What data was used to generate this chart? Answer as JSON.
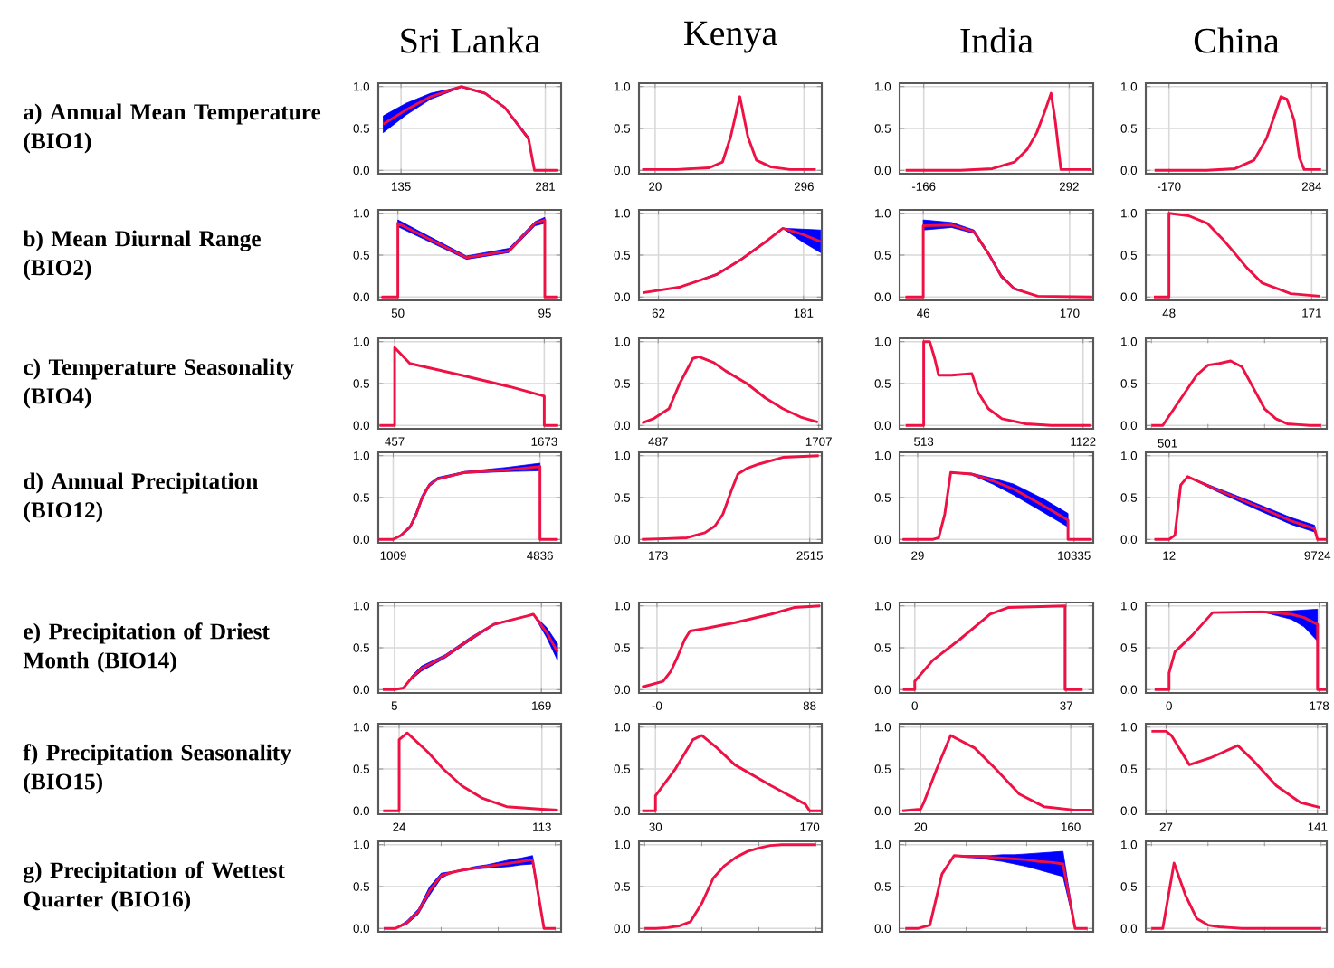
{
  "chart_data": [
    {
      "type": "line",
      "title": "Sri Lanka",
      "ylabel": "a) Annual Mean Temperature (BIO1)",
      "x": [
        117,
        140,
        165,
        196,
        220,
        240,
        264,
        270,
        294
      ],
      "xlim": [
        112,
        297
      ],
      "xticks": [
        135,
        281
      ],
      "ylim": [
        -0.04,
        1.04
      ],
      "yticks": [
        {
          "value": 0,
          "label": "0.0"
        },
        {
          "value": 0.5,
          "label": "0.5"
        },
        {
          "value": 1,
          "label": "1.0"
        }
      ],
      "grid": true,
      "series": [
        {
          "color": "#ee1144",
          "values": [
            0.55,
            0.72,
            0.88,
            1.0,
            0.92,
            0.75,
            0.38,
            0,
            0
          ],
          "lower": [
            0.45,
            0.66,
            0.85,
            0.99,
            0.91,
            0.74,
            0.36,
            0,
            0
          ],
          "upper": [
            0.65,
            0.8,
            0.92,
            1.0,
            0.93,
            0.76,
            0.4,
            0,
            0
          ]
        }
      ]
    },
    {
      "type": "line",
      "title": "Kenya",
      "x": [
        -4,
        60,
        120,
        145,
        160,
        177,
        192,
        208,
        235,
        270,
        318
      ],
      "xlim": [
        -10,
        329
      ],
      "xticks": [
        20,
        296
      ],
      "ylim": [
        -0.04,
        1.04
      ],
      "yticks": [
        {
          "value": 0,
          "label": "0.0"
        },
        {
          "value": 0.5,
          "label": "0.5"
        },
        {
          "value": 1,
          "label": "1.0"
        }
      ],
      "grid": true,
      "series": [
        {
          "color": "#ee1144",
          "values": [
            0.01,
            0.01,
            0.03,
            0.1,
            0.4,
            0.88,
            0.4,
            0.12,
            0.04,
            0.01,
            0.01
          ]
        }
      ]
    },
    {
      "type": "line",
      "title": "India",
      "x": [
        -223,
        -50,
        50,
        120,
        160,
        190,
        215,
        235,
        248,
        266,
        360
      ],
      "xlim": [
        -242,
        368
      ],
      "xticks": [
        -166,
        292
      ],
      "ylim": [
        -0.04,
        1.04
      ],
      "yticks": [
        {
          "value": 0,
          "label": "0.0"
        },
        {
          "value": 0.5,
          "label": "0.5"
        },
        {
          "value": 1,
          "label": "1.0"
        }
      ],
      "grid": true,
      "series": [
        {
          "color": "#ee1144",
          "values": [
            0,
            0,
            0.02,
            0.1,
            0.25,
            0.45,
            0.7,
            0.92,
            0.6,
            0.01,
            0.01
          ]
        }
      ]
    },
    {
      "type": "line",
      "title": "China",
      "x": [
        -216,
        -50,
        40,
        100,
        140,
        170,
        186,
        205,
        228,
        245,
        260,
        314
      ],
      "xlim": [
        -244,
        332
      ],
      "xticks": [
        -170,
        284
      ],
      "ylim": [
        -0.04,
        1.04
      ],
      "yticks": [
        {
          "value": 0,
          "label": "0.0"
        },
        {
          "value": 0.5,
          "label": "0.5"
        },
        {
          "value": 1,
          "label": "1.0"
        }
      ],
      "grid": true,
      "series": [
        {
          "color": "#ee1144",
          "values": [
            0,
            0,
            0.02,
            0.12,
            0.38,
            0.7,
            0.88,
            0.85,
            0.6,
            0.15,
            0.01,
            0.01
          ]
        }
      ]
    },
    {
      "type": "line",
      "ylabel": "b) Mean Diurnal Range (BIO2)",
      "x": [
        45,
        50,
        50,
        71,
        84,
        92,
        95,
        95,
        99
      ],
      "xlim": [
        44,
        100
      ],
      "xticks": [
        50,
        95
      ],
      "ylim": [
        -0.04,
        1.04
      ],
      "yticks": [
        {
          "value": 0,
          "label": "0.0"
        },
        {
          "value": 0.5,
          "label": "0.5"
        },
        {
          "value": 1,
          "label": "1.0"
        }
      ],
      "grid": true,
      "series": [
        {
          "color": "#ee1144",
          "values": [
            0,
            0,
            0.88,
            0.47,
            0.55,
            0.88,
            0.92,
            0,
            0
          ],
          "lower": [
            0,
            0,
            0.84,
            0.45,
            0.53,
            0.85,
            0.88,
            0,
            0
          ],
          "upper": [
            0,
            0,
            0.92,
            0.49,
            0.58,
            0.9,
            0.95,
            0,
            0
          ]
        }
      ]
    },
    {
      "type": "line",
      "x": [
        49,
        80,
        110,
        130,
        150,
        164,
        180,
        195
      ],
      "xlim": [
        46,
        196
      ],
      "xticks": [
        62,
        181
      ],
      "ylim": [
        -0.04,
        1.04
      ],
      "yticks": [
        {
          "value": 0,
          "label": "0.0"
        },
        {
          "value": 0.5,
          "label": "0.5"
        },
        {
          "value": 1,
          "label": "1.0"
        }
      ],
      "grid": true,
      "series": [
        {
          "color": "#ee1144",
          "values": [
            0.05,
            0.12,
            0.27,
            0.45,
            0.66,
            0.82,
            0.75,
            0.66
          ],
          "lower": [
            0.05,
            0.12,
            0.26,
            0.44,
            0.65,
            0.82,
            0.66,
            0.53
          ],
          "upper": [
            0.05,
            0.12,
            0.28,
            0.46,
            0.67,
            0.82,
            0.81,
            0.8
          ]
        }
      ]
    },
    {
      "type": "line",
      "x": [
        31,
        46,
        46,
        70,
        89,
        102,
        112,
        123,
        143,
        189
      ],
      "xlim": [
        26,
        190
      ],
      "xticks": [
        46,
        170
      ],
      "ylim": [
        -0.04,
        1.04
      ],
      "yticks": [
        {
          "value": 0,
          "label": "0.0"
        },
        {
          "value": 0.5,
          "label": "0.5"
        },
        {
          "value": 1,
          "label": "1.0"
        }
      ],
      "grid": true,
      "series": [
        {
          "color": "#ee1144",
          "values": [
            0,
            0,
            0.85,
            0.86,
            0.78,
            0.5,
            0.25,
            0.1,
            0.01,
            0
          ],
          "lower": [
            0,
            0,
            0.8,
            0.83,
            0.76,
            0.48,
            0.23,
            0.09,
            0.01,
            0
          ],
          "upper": [
            0,
            0,
            0.92,
            0.89,
            0.8,
            0.52,
            0.27,
            0.11,
            0.01,
            0
          ]
        }
      ]
    },
    {
      "type": "line",
      "x": [
        35,
        48,
        48,
        65,
        81,
        95,
        103,
        115,
        128,
        153,
        178
      ],
      "xlim": [
        28,
        184
      ],
      "xticks": [
        48,
        171
      ],
      "ylim": [
        -0.04,
        1.04
      ],
      "yticks": [
        {
          "value": 0,
          "label": "0.0"
        },
        {
          "value": 0.5,
          "label": "0.5"
        },
        {
          "value": 1,
          "label": "1.0"
        }
      ],
      "grid": true,
      "series": [
        {
          "color": "#ee1144",
          "values": [
            0,
            0,
            1.0,
            0.97,
            0.88,
            0.68,
            0.55,
            0.35,
            0.17,
            0.04,
            0.01
          ]
        }
      ]
    },
    {
      "type": "line",
      "ylabel": "c) Temperature Seasonality (BIO4)",
      "x": [
        334,
        457,
        457,
        580,
        1000,
        1400,
        1673,
        1673,
        1786
      ],
      "xlim": [
        324,
        1810
      ],
      "xticks": [
        457,
        1673
      ],
      "ylim": [
        -0.04,
        1.04
      ],
      "yticks": [
        {
          "value": 0,
          "label": "0.0"
        },
        {
          "value": 0.5,
          "label": "0.5"
        },
        {
          "value": 1,
          "label": "1.0"
        }
      ],
      "grid": true,
      "series": [
        {
          "color": "#ee1144",
          "values": [
            0,
            0,
            0.93,
            0.74,
            0.6,
            0.46,
            0.35,
            0,
            0
          ]
        }
      ]
    },
    {
      "type": "line",
      "x": [
        364,
        450,
        569,
        650,
        751,
        796,
        910,
        1000,
        1161,
        1300,
        1434,
        1570,
        1700
      ],
      "xlim": [
        341,
        1730
      ],
      "xticks": [
        487,
        1707
      ],
      "ylim": [
        -0.04,
        1.04
      ],
      "yticks": [
        {
          "value": 0,
          "label": "0.0"
        },
        {
          "value": 0.5,
          "label": "0.5"
        },
        {
          "value": 1,
          "label": "1.0"
        }
      ],
      "grid": true,
      "series": [
        {
          "color": "#ee1144",
          "values": [
            0.03,
            0.08,
            0.2,
            0.5,
            0.8,
            0.82,
            0.75,
            0.65,
            0.5,
            0.33,
            0.2,
            0.1,
            0.04
          ]
        }
      ]
    },
    {
      "type": "line",
      "x": [
        444,
        513,
        513,
        536,
        555,
        570,
        620,
        697,
        720,
        760,
        812,
        904,
        1000,
        1150
      ],
      "xlim": [
        421,
        1161
      ],
      "xticks": [
        513,
        1122
      ],
      "ylim": [
        -0.04,
        1.04
      ],
      "yticks": [
        {
          "value": 0,
          "label": "0.0"
        },
        {
          "value": 0.5,
          "label": "0.5"
        },
        {
          "value": 1,
          "label": "1.0"
        }
      ],
      "grid": true,
      "series": [
        {
          "color": "#ee1144",
          "values": [
            0,
            0,
            1.0,
            1.0,
            0.8,
            0.6,
            0.6,
            0.62,
            0.4,
            0.2,
            0.08,
            0.02,
            0,
            0
          ]
        }
      ]
    },
    {
      "type": "line",
      "categories": [
        null,
        null,
        null,
        null,
        null,
        null,
        null,
        null,
        null,
        null,
        null,
        null,
        null,
        null,
        null,
        null
      ],
      "annotations": [
        "501"
      ],
      "ylim": [
        -0.04,
        1.04
      ],
      "yticks": [
        {
          "value": 0,
          "label": "0.0"
        },
        {
          "value": 0.5,
          "label": "0.5"
        },
        {
          "value": 1,
          "label": "1.0"
        }
      ],
      "grid": "y",
      "series": [
        {
          "color": "#ee1144",
          "values": [
            0,
            0,
            0.2,
            0.4,
            0.6,
            0.72,
            0.74,
            0.77,
            0.7,
            0.45,
            0.2,
            0.08,
            0.02,
            0.01,
            0,
            0
          ]
        }
      ]
    },
    {
      "type": "line",
      "ylabel": "d) Annual Precipitation (BIO12)",
      "x": [
        631,
        1009,
        1214,
        1450,
        1607,
        1765,
        1950,
        2159,
        2868,
        3970,
        4836,
        4836,
        5300
      ],
      "xlim": [
        620,
        5387
      ],
      "xticks": [
        1009,
        4836
      ],
      "ylim": [
        -0.04,
        1.04
      ],
      "yticks": [
        {
          "value": 0,
          "label": "0.0"
        },
        {
          "value": 0.5,
          "label": "0.5"
        },
        {
          "value": 1,
          "label": "1.0"
        }
      ],
      "grid": true,
      "series": [
        {
          "color": "#ee1144",
          "values": [
            0,
            0,
            0.05,
            0.15,
            0.3,
            0.5,
            0.65,
            0.72,
            0.8,
            0.83,
            0.87,
            0,
            0
          ],
          "lower": [
            0,
            0,
            0.04,
            0.13,
            0.27,
            0.47,
            0.63,
            0.71,
            0.79,
            0.81,
            0.82,
            0,
            0
          ],
          "upper": [
            0,
            0,
            0.06,
            0.17,
            0.33,
            0.53,
            0.67,
            0.74,
            0.81,
            0.86,
            0.91,
            0,
            0
          ]
        }
      ]
    },
    {
      "type": "line",
      "x": [
        -77,
        300,
        617,
        895,
        1050,
        1173,
        1312,
        1405,
        1550,
        1729,
        2099,
        2654
      ],
      "xlim": [
        -123,
        2701
      ],
      "xticks": [
        173,
        2515
      ],
      "ylim": [
        -0.04,
        1.04
      ],
      "yticks": [
        {
          "value": 0,
          "label": "0.0"
        },
        {
          "value": 0.5,
          "label": "0.5"
        },
        {
          "value": 1,
          "label": "1.0"
        }
      ],
      "grid": true,
      "series": [
        {
          "color": "#ee1144",
          "values": [
            0,
            0.01,
            0.02,
            0.08,
            0.16,
            0.3,
            0.6,
            0.78,
            0.85,
            0.9,
            0.98,
            1.0
          ]
        }
      ]
    },
    {
      "type": "line",
      "x": [
        -960,
        1000,
        1416,
        1813,
        2209,
        3597,
        5000,
        6371,
        8353,
        9939,
        9939,
        11500
      ],
      "xlim": [
        -1160,
        11604
      ],
      "xticks": [
        29,
        10335
      ],
      "ylim": [
        -0.04,
        1.04
      ],
      "yticks": [
        {
          "value": 0,
          "label": "0.0"
        },
        {
          "value": 0.5,
          "label": "0.5"
        },
        {
          "value": 1,
          "label": "1.0"
        }
      ],
      "grid": true,
      "series": [
        {
          "color": "#ee1144",
          "values": [
            0,
            0,
            0.02,
            0.3,
            0.8,
            0.78,
            0.7,
            0.6,
            0.4,
            0.23,
            0,
            0
          ],
          "lower": [
            0,
            0,
            0.02,
            0.3,
            0.8,
            0.77,
            0.66,
            0.53,
            0.32,
            0.15,
            0,
            0
          ],
          "upper": [
            0,
            0,
            0.02,
            0.3,
            0.8,
            0.79,
            0.73,
            0.66,
            0.48,
            0.31,
            0,
            0
          ]
        }
      ]
    },
    {
      "type": "line",
      "x": [
        -940,
        12,
        393,
        774,
        1231,
        3059,
        5725,
        8011,
        9534,
        9724,
        10300
      ],
      "xlim": [
        -1512,
        10334
      ],
      "xticks": [
        12,
        9724
      ],
      "ylim": [
        -0.04,
        1.04
      ],
      "yticks": [
        {
          "value": 0,
          "label": "0.0"
        },
        {
          "value": 0.5,
          "label": "0.5"
        },
        {
          "value": 1,
          "label": "1.0"
        }
      ],
      "grid": true,
      "series": [
        {
          "color": "#ee1144",
          "values": [
            0,
            0,
            0.05,
            0.65,
            0.75,
            0.6,
            0.4,
            0.22,
            0.13,
            0,
            0
          ],
          "lower": [
            0,
            0,
            0.05,
            0.65,
            0.75,
            0.58,
            0.36,
            0.18,
            0.09,
            0,
            0
          ],
          "upper": [
            0,
            0,
            0.05,
            0.65,
            0.75,
            0.62,
            0.43,
            0.26,
            0.17,
            0,
            0
          ]
        }
      ]
    },
    {
      "type": "line",
      "ylabel": "e) Precipitation of Driest Month (BIO14)",
      "x": [
        -8,
        5,
        15,
        25,
        35,
        62,
        89,
        116,
        153,
        160,
        175,
        187
      ],
      "xlim": [
        -13,
        191
      ],
      "xticks": [
        5,
        169
      ],
      "ylim": [
        -0.04,
        1.04
      ],
      "yticks": [
        {
          "value": 0,
          "label": "0.0"
        },
        {
          "value": 0.5,
          "label": "0.5"
        },
        {
          "value": 1,
          "label": "1.0"
        }
      ],
      "grid": true,
      "series": [
        {
          "color": "#ee1144",
          "values": [
            0,
            0,
            0.02,
            0.15,
            0.25,
            0.4,
            0.6,
            0.78,
            0.88,
            0.9,
            0.68,
            0.45
          ],
          "lower": [
            0,
            0,
            0.02,
            0.13,
            0.22,
            0.38,
            0.58,
            0.77,
            0.88,
            0.9,
            0.62,
            0.35
          ],
          "upper": [
            0,
            0,
            0.02,
            0.17,
            0.28,
            0.42,
            0.62,
            0.79,
            0.88,
            0.9,
            0.74,
            0.55
          ]
        }
      ]
    },
    {
      "type": "line",
      "x": [
        -8.6,
        3.5,
        8,
        12,
        16,
        19,
        27.6,
        44.9,
        65.6,
        79,
        94
      ],
      "xlim": [
        -10.4,
        95
      ],
      "xticks": [
        {
          "value": 0,
          "label": "-0"
        },
        88
      ],
      "ylim": [
        -0.04,
        1.04
      ],
      "yticks": [
        {
          "value": 0,
          "label": "0.0"
        },
        {
          "value": 0.5,
          "label": "0.5"
        },
        {
          "value": 1,
          "label": "1.0"
        }
      ],
      "grid": true,
      "series": [
        {
          "color": "#ee1144",
          "values": [
            0.03,
            0.1,
            0.22,
            0.4,
            0.6,
            0.7,
            0.73,
            0.8,
            0.9,
            0.98,
            1.0
          ]
        }
      ]
    },
    {
      "type": "line",
      "x": [
        -2.9,
        0,
        0,
        4.4,
        11,
        18.4,
        22.8,
        36.7,
        36.7,
        41
      ],
      "xlim": [
        -3.7,
        43.6
      ],
      "xticks": [
        0,
        37
      ],
      "ylim": [
        -0.04,
        1.04
      ],
      "yticks": [
        {
          "value": 0,
          "label": "0.0"
        },
        {
          "value": 0.5,
          "label": "0.5"
        },
        {
          "value": 1,
          "label": "1.0"
        }
      ],
      "grid": true,
      "series": [
        {
          "color": "#ee1144",
          "values": [
            0,
            0,
            0.1,
            0.35,
            0.6,
            0.9,
            0.98,
            1.0,
            0,
            0
          ]
        }
      ]
    },
    {
      "type": "line",
      "x": [
        -17,
        0,
        0,
        6.9,
        27.6,
        51.7,
        110,
        145,
        160,
        176,
        176,
        186
      ],
      "xlim": [
        -27.6,
        187
      ],
      "xticks": [
        0,
        178
      ],
      "ylim": [
        -0.04,
        1.04
      ],
      "yticks": [
        {
          "value": 0,
          "label": "0.0"
        },
        {
          "value": 0.5,
          "label": "0.5"
        },
        {
          "value": 1,
          "label": "1.0"
        }
      ],
      "grid": true,
      "series": [
        {
          "color": "#ee1144",
          "values": [
            0,
            0,
            0.2,
            0.45,
            0.65,
            0.92,
            0.93,
            0.9,
            0.86,
            0.78,
            0,
            0
          ],
          "lower": [
            0,
            0,
            0.2,
            0.45,
            0.65,
            0.92,
            0.93,
            0.84,
            0.75,
            0.58,
            0,
            0
          ],
          "upper": [
            0,
            0,
            0.2,
            0.45,
            0.65,
            0.92,
            0.93,
            0.94,
            0.95,
            0.96,
            0,
            0
          ]
        }
      ]
    },
    {
      "type": "line",
      "ylabel": "f) Precipitation Seasonality (BIO15)",
      "x": [
        14,
        24,
        24,
        29,
        42,
        51.5,
        63,
        76,
        91,
        113,
        123
      ],
      "xlim": [
        11,
        125
      ],
      "xticks": [
        24,
        113
      ],
      "ylim": [
        -0.04,
        1.04
      ],
      "yticks": [
        {
          "value": 0,
          "label": "0.0"
        },
        {
          "value": 0.5,
          "label": "0.5"
        },
        {
          "value": 1,
          "label": "1.0"
        }
      ],
      "grid": true,
      "series": [
        {
          "color": "#ee1144",
          "values": [
            0,
            0,
            0.85,
            0.93,
            0.7,
            0.5,
            0.3,
            0.15,
            0.05,
            0.02,
            0.01
          ]
        }
      ]
    },
    {
      "type": "line",
      "x": [
        18,
        30,
        30,
        48,
        64,
        72,
        86,
        102,
        135,
        166,
        170,
        181
      ],
      "xlim": [
        15,
        181
      ],
      "xticks": [
        30,
        170
      ],
      "ylim": [
        -0.04,
        1.04
      ],
      "yticks": [
        {
          "value": 0,
          "label": "0.0"
        },
        {
          "value": 0.5,
          "label": "0.5"
        },
        {
          "value": 1,
          "label": "1.0"
        }
      ],
      "grid": true,
      "series": [
        {
          "color": "#ee1144",
          "values": [
            0,
            0,
            0.18,
            0.5,
            0.85,
            0.9,
            0.75,
            0.55,
            0.3,
            0.08,
            0,
            0
          ]
        }
      ]
    },
    {
      "type": "line",
      "x": [
        3,
        20,
        23,
        35,
        48,
        70.4,
        90,
        112,
        135,
        163,
        180
      ],
      "xlim": [
        0.4,
        181
      ],
      "xticks": [
        20,
        160
      ],
      "ylim": [
        -0.04,
        1.04
      ],
      "yticks": [
        {
          "value": 0,
          "label": "0.0"
        },
        {
          "value": 0.5,
          "label": "0.5"
        },
        {
          "value": 1,
          "label": "1.0"
        }
      ],
      "grid": true,
      "series": [
        {
          "color": "#ee1144",
          "values": [
            0,
            0.02,
            0.1,
            0.5,
            0.9,
            0.75,
            0.5,
            0.2,
            0.05,
            0.01,
            0.01
          ]
        }
      ]
    },
    {
      "type": "line",
      "x": [
        16,
        27,
        31,
        44.5,
        60,
        81,
        92.7,
        110,
        128,
        143
      ],
      "xlim": [
        11.7,
        148
      ],
      "xticks": [
        27,
        141
      ],
      "ylim": [
        -0.04,
        1.04
      ],
      "yticks": [
        {
          "value": 0,
          "label": "0.0"
        },
        {
          "value": 0.5,
          "label": "0.5"
        },
        {
          "value": 1,
          "label": "1.0"
        }
      ],
      "grid": true,
      "series": [
        {
          "color": "#ee1144",
          "values": [
            0.95,
            0.95,
            0.9,
            0.55,
            0.63,
            0.78,
            0.6,
            0.3,
            0.1,
            0.04
          ]
        }
      ]
    },
    {
      "type": "line",
      "ylabel": "g) Precipitation of Wettest Quarter (BIO16)",
      "categories": [
        null,
        null,
        null,
        null,
        null,
        null,
        null,
        null,
        null,
        null,
        null,
        null,
        null,
        null,
        null,
        null
      ],
      "ylim": [
        -0.04,
        1.04
      ],
      "yticks": [
        {
          "value": 0,
          "label": "0.0"
        },
        {
          "value": 0.5,
          "label": "0.5"
        },
        {
          "value": 1,
          "label": "1.0"
        }
      ],
      "grid": "y",
      "series": [
        {
          "color": "#ee1144",
          "values": [
            0,
            0,
            0.07,
            0.2,
            0.45,
            0.63,
            0.67,
            0.7,
            0.72,
            0.74,
            0.76,
            0.78,
            0.8,
            0.82,
            0,
            0
          ],
          "lower": [
            0,
            0,
            0.05,
            0.17,
            0.4,
            0.6,
            0.67,
            0.69,
            0.71,
            0.72,
            0.73,
            0.74,
            0.76,
            0.77,
            0,
            0
          ],
          "upper": [
            0,
            0,
            0.09,
            0.23,
            0.5,
            0.66,
            0.68,
            0.71,
            0.74,
            0.76,
            0.79,
            0.82,
            0.84,
            0.87,
            0,
            0
          ]
        }
      ]
    },
    {
      "type": "line",
      "categories": [
        null,
        null,
        null,
        null,
        null,
        null,
        null,
        null,
        null,
        null,
        null,
        null,
        null,
        null,
        null,
        null
      ],
      "ylim": [
        -0.04,
        1.04
      ],
      "yticks": [
        {
          "value": 0,
          "label": "0.0"
        },
        {
          "value": 0.5,
          "label": "0.5"
        },
        {
          "value": 1,
          "label": "1.0"
        }
      ],
      "grid": "y",
      "series": [
        {
          "color": "#ee1144",
          "values": [
            0,
            0,
            0.01,
            0.03,
            0.08,
            0.3,
            0.6,
            0.75,
            0.85,
            0.92,
            0.96,
            0.99,
            1.0,
            1.0,
            1.0,
            1.0
          ]
        }
      ]
    },
    {
      "type": "line",
      "categories": [
        null,
        null,
        null,
        null,
        null,
        null,
        null,
        null,
        null,
        null,
        null,
        null,
        null,
        null,
        null,
        null
      ],
      "ylim": [
        -0.04,
        1.04
      ],
      "yticks": [
        {
          "value": 0,
          "label": "0.0"
        },
        {
          "value": 0.5,
          "label": "0.5"
        },
        {
          "value": 1,
          "label": "1.0"
        }
      ],
      "grid": "y",
      "series": [
        {
          "color": "#ee1144",
          "values": [
            0,
            0,
            0.04,
            0.65,
            0.87,
            0.86,
            0.86,
            0.85,
            0.84,
            0.83,
            0.82,
            0.8,
            0.79,
            0.77,
            0,
            0
          ],
          "lower": [
            0,
            0,
            0.04,
            0.65,
            0.87,
            0.85,
            0.84,
            0.82,
            0.8,
            0.77,
            0.74,
            0.7,
            0.66,
            0.62,
            0,
            0
          ],
          "upper": [
            0,
            0,
            0.04,
            0.65,
            0.87,
            0.87,
            0.87,
            0.87,
            0.88,
            0.88,
            0.89,
            0.9,
            0.91,
            0.92,
            0,
            0
          ]
        }
      ]
    },
    {
      "type": "line",
      "categories": [
        null,
        null,
        null,
        null,
        null,
        null,
        null,
        null,
        null,
        null,
        null,
        null,
        null,
        null,
        null,
        null
      ],
      "ylim": [
        -0.04,
        1.04
      ],
      "yticks": [
        {
          "value": 0,
          "label": "0.0"
        },
        {
          "value": 0.5,
          "label": "0.5"
        },
        {
          "value": 1,
          "label": "1.0"
        }
      ],
      "grid": "y",
      "series": [
        {
          "color": "#ee1144",
          "values": [
            0,
            0,
            0.78,
            0.4,
            0.12,
            0.04,
            0.02,
            0.01,
            0,
            0,
            0,
            0,
            0,
            0,
            0,
            0
          ]
        }
      ]
    }
  ]
}
